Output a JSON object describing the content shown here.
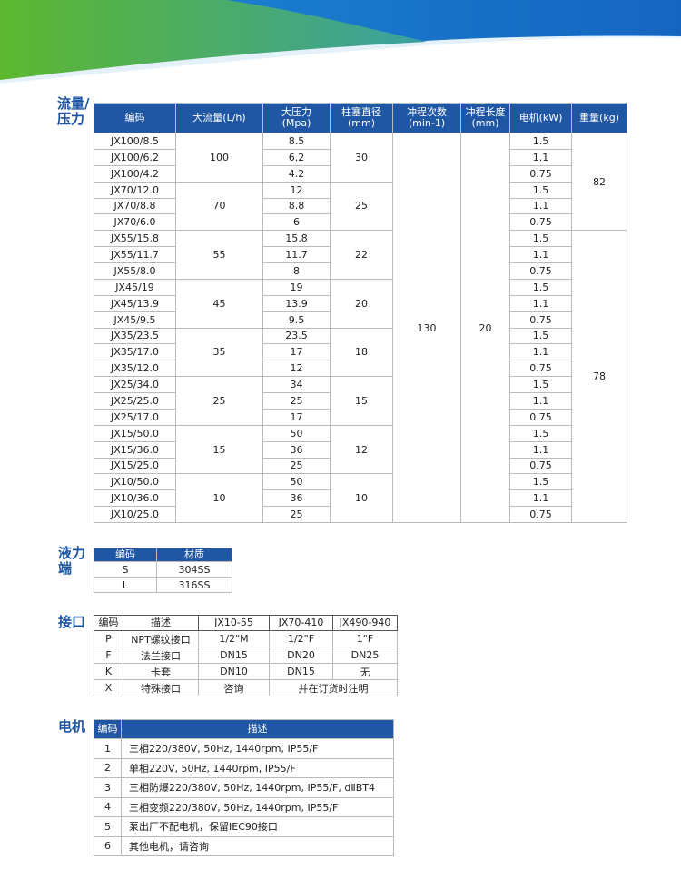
{
  "flow_pressure": {
    "label": "流量/压力",
    "headers": [
      "编码",
      "大流量(L/h)",
      [
        "大压力",
        "(Mpa)"
      ],
      [
        "柱塞直径",
        "(mm)"
      ],
      [
        "冲程次数",
        "(min-1)"
      ],
      [
        "冲程长度",
        "(mm)"
      ],
      "电机(kW)",
      "重量(kg)"
    ],
    "rows": [
      [
        "JX100/8.5",
        "8.5",
        "1.5"
      ],
      [
        "JX100/6.2",
        "6.2",
        "1.1"
      ],
      [
        "JX100/4.2",
        "4.2",
        "0.75"
      ],
      [
        "JX70/12.0",
        "12",
        "1.5"
      ],
      [
        "JX70/8.8",
        "8.8",
        "1.1"
      ],
      [
        "JX70/6.0",
        "6",
        "0.75"
      ],
      [
        "JX55/15.8",
        "15.8",
        "1.5"
      ],
      [
        "JX55/11.7",
        "11.7",
        "1.1"
      ],
      [
        "JX55/8.0",
        "8",
        "0.75"
      ],
      [
        "JX45/19",
        "19",
        "1.5"
      ],
      [
        "JX45/13.9",
        "13.9",
        "1.1"
      ],
      [
        "JX45/9.5",
        "9.5",
        "0.75"
      ],
      [
        "JX35/23.5",
        "23.5",
        "1.5"
      ],
      [
        "JX35/17.0",
        "17",
        "1.1"
      ],
      [
        "JX35/12.0",
        "12",
        "0.75"
      ],
      [
        "JX25/34.0",
        "34",
        "1.5"
      ],
      [
        "JX25/25.0",
        "25",
        "1.1"
      ],
      [
        "JX25/17.0",
        "17",
        "0.75"
      ],
      [
        "JX15/50.0",
        "50",
        "1.5"
      ],
      [
        "JX15/36.0",
        "36",
        "1.1"
      ],
      [
        "JX15/25.0",
        "25",
        "0.75"
      ],
      [
        "JX10/50.0",
        "50",
        "1.5"
      ],
      [
        "JX10/36.0",
        "36",
        "1.1"
      ],
      [
        "JX10/25.0",
        "25",
        "0.75"
      ]
    ],
    "groups": [
      [
        "100",
        "30"
      ],
      [
        "70",
        "25"
      ],
      [
        "55",
        "22"
      ],
      [
        "45",
        "20"
      ],
      [
        "35",
        "18"
      ],
      [
        "25",
        "15"
      ],
      [
        "15",
        "12"
      ],
      [
        "10",
        "10"
      ]
    ],
    "stroke_count": "130",
    "stroke_length": "20",
    "weights": [
      "82",
      "78"
    ]
  },
  "liquid_end": {
    "label": "液力端",
    "headers": [
      "编码",
      "材质"
    ],
    "rows": [
      [
        "S",
        "304SS"
      ],
      [
        "L",
        "316SS"
      ]
    ]
  },
  "connection": {
    "label": "接口",
    "headers": [
      "编码",
      "描述",
      "JX10-55",
      "JX70-410",
      "JX490-940"
    ],
    "rows": [
      [
        "P",
        "NPT螺纹接口",
        "1/2\"M",
        "1/2\"F",
        "1\"F"
      ],
      [
        "F",
        "法兰接口",
        "DN15",
        "DN20",
        "DN25"
      ],
      [
        "K",
        "卡套",
        "DN10",
        "DN15",
        "无"
      ],
      [
        "X",
        "特殊接口",
        "咨询",
        "并在订货时注明"
      ]
    ]
  },
  "motor": {
    "label": "电机",
    "headers": [
      "编码",
      "描述"
    ],
    "rows": [
      [
        "1",
        "三相220/380V, 50Hz, 1440rpm, IP55/F"
      ],
      [
        "2",
        "单相220V, 50Hz, 1440rpm, IP55/F"
      ],
      [
        "3",
        "三相防爆220/380V, 50Hz, 1440rpm, IP55/F, dⅡBT4"
      ],
      [
        "4",
        "三相变频220/380V, 50Hz, 1440rpm, IP55/F"
      ],
      [
        "5",
        "泵出厂不配电机，保留IEC90接口"
      ],
      [
        "6",
        "其他电机，请咨询"
      ]
    ]
  }
}
